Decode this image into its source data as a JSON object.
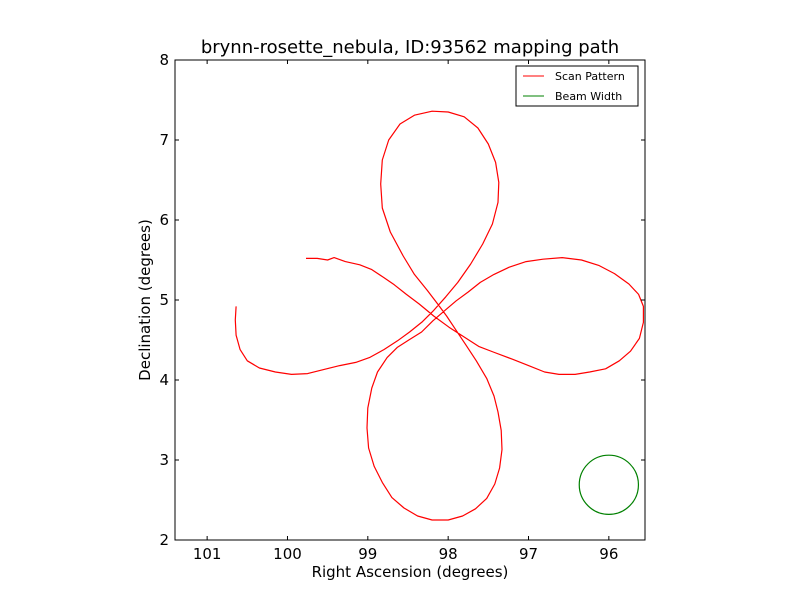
{
  "chart_data": {
    "type": "line",
    "title": "brynn-rosette_nebula, ID:93562 mapping path",
    "xlabel": "Right Ascension (degrees)",
    "ylabel": "Declination (degrees)",
    "xlim": [
      101.4,
      95.55
    ],
    "ylim": [
      2,
      8
    ],
    "x_inverted": true,
    "xticks": [
      101,
      100,
      99,
      98,
      97,
      96
    ],
    "xtick_labels": [
      "101",
      "100",
      "99",
      "98",
      "97",
      "96"
    ],
    "yticks": [
      2,
      3,
      4,
      5,
      6,
      7,
      8
    ],
    "ytick_labels": [
      "2",
      "3",
      "4",
      "5",
      "6",
      "7",
      "8"
    ],
    "grid": false,
    "legend_position": "top-right",
    "series": [
      {
        "name": "Scan Pattern",
        "color": "#ff0000",
        "points": [
          [
            99.77,
            5.52
          ],
          [
            99.63,
            5.52
          ],
          [
            99.5,
            5.5
          ],
          [
            99.42,
            5.53
          ],
          [
            99.28,
            5.48
          ],
          [
            99.1,
            5.44
          ],
          [
            98.95,
            5.38
          ],
          [
            98.8,
            5.28
          ],
          [
            98.67,
            5.19
          ],
          [
            98.52,
            5.07
          ],
          [
            98.36,
            4.95
          ],
          [
            98.18,
            4.8
          ],
          [
            97.99,
            4.66
          ],
          [
            97.82,
            4.55
          ],
          [
            97.62,
            4.42
          ],
          [
            97.44,
            4.35
          ],
          [
            97.2,
            4.26
          ],
          [
            97.0,
            4.18
          ],
          [
            96.8,
            4.1
          ],
          [
            96.62,
            4.07
          ],
          [
            96.42,
            4.07
          ],
          [
            96.24,
            4.1
          ],
          [
            96.04,
            4.14
          ],
          [
            95.87,
            4.24
          ],
          [
            95.73,
            4.36
          ],
          [
            95.62,
            4.52
          ],
          [
            95.57,
            4.72
          ],
          [
            95.57,
            4.92
          ],
          [
            95.63,
            5.07
          ],
          [
            95.75,
            5.2
          ],
          [
            95.93,
            5.33
          ],
          [
            96.12,
            5.43
          ],
          [
            96.34,
            5.5
          ],
          [
            96.58,
            5.53
          ],
          [
            96.82,
            5.51
          ],
          [
            97.03,
            5.48
          ],
          [
            97.24,
            5.41
          ],
          [
            97.43,
            5.32
          ],
          [
            97.6,
            5.22
          ],
          [
            97.75,
            5.1
          ],
          [
            97.9,
            4.99
          ],
          [
            98.04,
            4.87
          ],
          [
            98.19,
            4.74
          ],
          [
            98.33,
            4.6
          ],
          [
            98.49,
            4.5
          ],
          [
            98.63,
            4.41
          ],
          [
            98.76,
            4.28
          ],
          [
            98.88,
            4.1
          ],
          [
            98.95,
            3.9
          ],
          [
            99.0,
            3.65
          ],
          [
            99.01,
            3.4
          ],
          [
            98.99,
            3.15
          ],
          [
            98.92,
            2.92
          ],
          [
            98.82,
            2.72
          ],
          [
            98.7,
            2.53
          ],
          [
            98.55,
            2.4
          ],
          [
            98.38,
            2.3
          ],
          [
            98.2,
            2.25
          ],
          [
            98.0,
            2.25
          ],
          [
            97.82,
            2.3
          ],
          [
            97.66,
            2.39
          ],
          [
            97.52,
            2.52
          ],
          [
            97.42,
            2.7
          ],
          [
            97.36,
            2.9
          ],
          [
            97.33,
            3.13
          ],
          [
            97.34,
            3.37
          ],
          [
            97.38,
            3.6
          ],
          [
            97.43,
            3.8
          ],
          [
            97.52,
            4.02
          ],
          [
            97.65,
            4.24
          ],
          [
            97.78,
            4.44
          ],
          [
            97.9,
            4.62
          ],
          [
            98.02,
            4.8
          ],
          [
            98.13,
            4.95
          ],
          [
            98.26,
            5.12
          ],
          [
            98.42,
            5.32
          ],
          [
            98.56,
            5.55
          ],
          [
            98.72,
            5.85
          ],
          [
            98.82,
            6.15
          ],
          [
            98.84,
            6.45
          ],
          [
            98.82,
            6.75
          ],
          [
            98.74,
            7.0
          ],
          [
            98.6,
            7.2
          ],
          [
            98.42,
            7.31
          ],
          [
            98.2,
            7.36
          ],
          [
            98.0,
            7.35
          ],
          [
            97.8,
            7.29
          ],
          [
            97.63,
            7.15
          ],
          [
            97.5,
            6.95
          ],
          [
            97.41,
            6.72
          ],
          [
            97.37,
            6.47
          ],
          [
            97.38,
            6.22
          ],
          [
            97.45,
            5.95
          ],
          [
            97.57,
            5.7
          ],
          [
            97.72,
            5.45
          ],
          [
            97.88,
            5.22
          ],
          [
            98.03,
            5.04
          ],
          [
            98.18,
            4.87
          ],
          [
            98.32,
            4.73
          ],
          [
            98.48,
            4.6
          ],
          [
            98.63,
            4.49
          ],
          [
            98.8,
            4.38
          ],
          [
            98.98,
            4.28
          ],
          [
            99.15,
            4.22
          ],
          [
            99.35,
            4.18
          ],
          [
            99.55,
            4.13
          ],
          [
            99.75,
            4.08
          ],
          [
            99.95,
            4.07
          ],
          [
            100.15,
            4.1
          ],
          [
            100.35,
            4.15
          ],
          [
            100.5,
            4.24
          ],
          [
            100.59,
            4.38
          ],
          [
            100.64,
            4.56
          ],
          [
            100.65,
            4.75
          ],
          [
            100.64,
            4.92
          ]
        ]
      },
      {
        "name": "Beam Width",
        "color": "#008000",
        "shape": "circle",
        "center": [
          96.0,
          2.69
        ],
        "radius": 0.37
      }
    ]
  }
}
